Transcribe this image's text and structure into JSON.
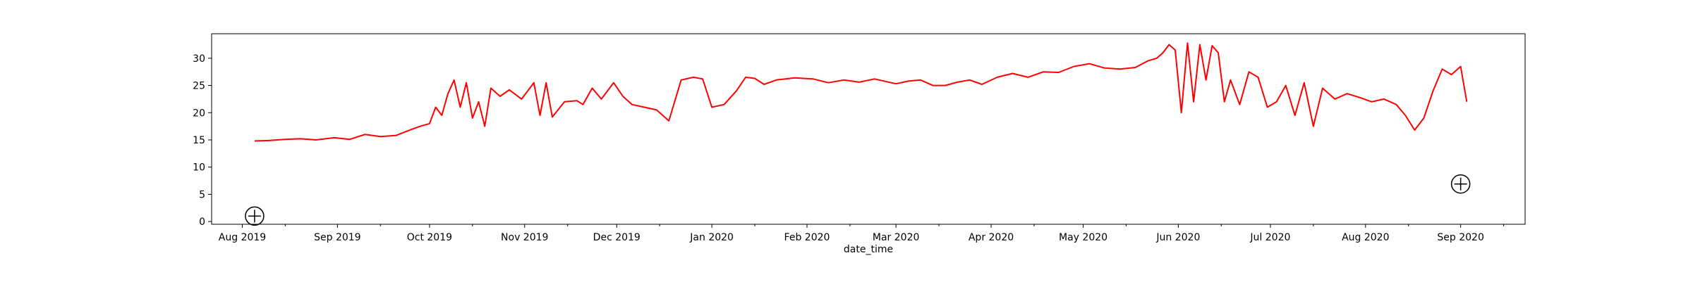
{
  "chart_data": {
    "type": "line",
    "title": "",
    "xlabel": "date_time",
    "ylabel": "",
    "xlim": [
      "2019-07-22",
      "2020-09-22"
    ],
    "ylim": [
      -0.5,
      34.5
    ],
    "grid": false,
    "x_ticks": [
      "2019-08-01",
      "2019-09-01",
      "2019-10-01",
      "2019-11-01",
      "2019-12-01",
      "2020-01-01",
      "2020-02-01",
      "2020-03-01",
      "2020-04-01",
      "2020-05-01",
      "2020-06-01",
      "2020-07-01",
      "2020-08-01",
      "2020-09-01"
    ],
    "x_tick_labels": [
      "Aug 2019",
      "Sep 2019",
      "Oct 2019",
      "Nov 2019",
      "Dec 2019",
      "Jan 2020",
      "Feb 2020",
      "Mar 2020",
      "Apr 2020",
      "May 2020",
      "Jun 2020",
      "Jul 2020",
      "Aug 2020",
      "Sep 2020"
    ],
    "y_ticks": [
      0,
      5,
      10,
      15,
      20,
      25,
      30
    ],
    "y_tick_labels": [
      "0",
      "5",
      "10",
      "15",
      "20",
      "25",
      "30"
    ],
    "series": [
      {
        "color": "#ff0000",
        "x": [
          "2019-08-05",
          "2019-08-10",
          "2019-08-15",
          "2019-08-20",
          "2019-08-25",
          "2019-08-31",
          "2019-09-05",
          "2019-09-10",
          "2019-09-15",
          "2019-09-20",
          "2019-09-25",
          "2019-09-28",
          "2019-10-01",
          "2019-10-03",
          "2019-10-05",
          "2019-10-07",
          "2019-10-09",
          "2019-10-11",
          "2019-10-13",
          "2019-10-15",
          "2019-10-17",
          "2019-10-19",
          "2019-10-21",
          "2019-10-24",
          "2019-10-27",
          "2019-10-31",
          "2019-11-04",
          "2019-11-06",
          "2019-11-08",
          "2019-11-10",
          "2019-11-14",
          "2019-11-18",
          "2019-11-20",
          "2019-11-23",
          "2019-11-26",
          "2019-11-30",
          "2019-12-03",
          "2019-12-06",
          "2019-12-10",
          "2019-12-14",
          "2019-12-18",
          "2019-12-22",
          "2019-12-26",
          "2019-12-29",
          "2020-01-01",
          "2020-01-05",
          "2020-01-09",
          "2020-01-12",
          "2020-01-15",
          "2020-01-18",
          "2020-01-22",
          "2020-01-28",
          "2020-02-03",
          "2020-02-08",
          "2020-02-13",
          "2020-02-18",
          "2020-02-23",
          "2020-03-01",
          "2020-03-05",
          "2020-03-09",
          "2020-03-13",
          "2020-03-17",
          "2020-03-21",
          "2020-03-25",
          "2020-03-29",
          "2020-04-03",
          "2020-04-08",
          "2020-04-13",
          "2020-04-18",
          "2020-04-23",
          "2020-04-28",
          "2020-05-03",
          "2020-05-08",
          "2020-05-13",
          "2020-05-18",
          "2020-05-22",
          "2020-05-25",
          "2020-05-27",
          "2020-05-29",
          "2020-05-31",
          "2020-06-02",
          "2020-06-04",
          "2020-06-06",
          "2020-06-08",
          "2020-06-10",
          "2020-06-12",
          "2020-06-14",
          "2020-06-16",
          "2020-06-18",
          "2020-06-21",
          "2020-06-24",
          "2020-06-27",
          "2020-06-30",
          "2020-07-03",
          "2020-07-06",
          "2020-07-09",
          "2020-07-12",
          "2020-07-15",
          "2020-07-18",
          "2020-07-22",
          "2020-07-26",
          "2020-07-30",
          "2020-08-03",
          "2020-08-07",
          "2020-08-11",
          "2020-08-14",
          "2020-08-17",
          "2020-08-20",
          "2020-08-23",
          "2020-08-26",
          "2020-08-29",
          "2020-09-01",
          "2020-09-03"
        ],
        "values": [
          14.8,
          14.9,
          15.1,
          15.2,
          15.0,
          15.4,
          15.1,
          16.0,
          15.6,
          15.8,
          16.9,
          17.5,
          18.0,
          21.0,
          19.5,
          23.5,
          26.0,
          21.0,
          25.5,
          19.0,
          22.0,
          17.5,
          24.5,
          23.0,
          24.2,
          22.5,
          25.5,
          19.5,
          25.5,
          19.2,
          22.0,
          22.2,
          21.5,
          24.5,
          22.5,
          25.5,
          23.0,
          21.5,
          21.0,
          20.5,
          18.5,
          26.0,
          26.5,
          26.2,
          21.0,
          21.5,
          24.0,
          26.5,
          26.3,
          25.2,
          26.0,
          26.4,
          26.2,
          25.5,
          26.0,
          25.6,
          26.2,
          25.3,
          25.8,
          26.0,
          25.0,
          25.0,
          25.6,
          26.0,
          25.2,
          26.5,
          27.2,
          26.5,
          27.5,
          27.4,
          28.5,
          29.0,
          28.2,
          28.0,
          28.3,
          29.5,
          30.0,
          31.0,
          32.5,
          31.5,
          20.0,
          32.8,
          22.0,
          32.5,
          26.0,
          32.3,
          31.0,
          22.0,
          26.0,
          21.5,
          27.5,
          26.5,
          21.0,
          22.0,
          25.0,
          19.5,
          25.5,
          17.5,
          24.5,
          22.5,
          23.5,
          22.8,
          22.0,
          22.5,
          21.5,
          19.5,
          16.8,
          19.0,
          24.0,
          28.0,
          27.0,
          28.5,
          22.0
        ]
      }
    ]
  },
  "markers": [
    {
      "icon": "crosshair-circle-icon",
      "x": "2019-08-05",
      "y": 1.0
    },
    {
      "icon": "crosshair-circle-icon",
      "x": "2020-09-01",
      "y": 6.9
    }
  ]
}
